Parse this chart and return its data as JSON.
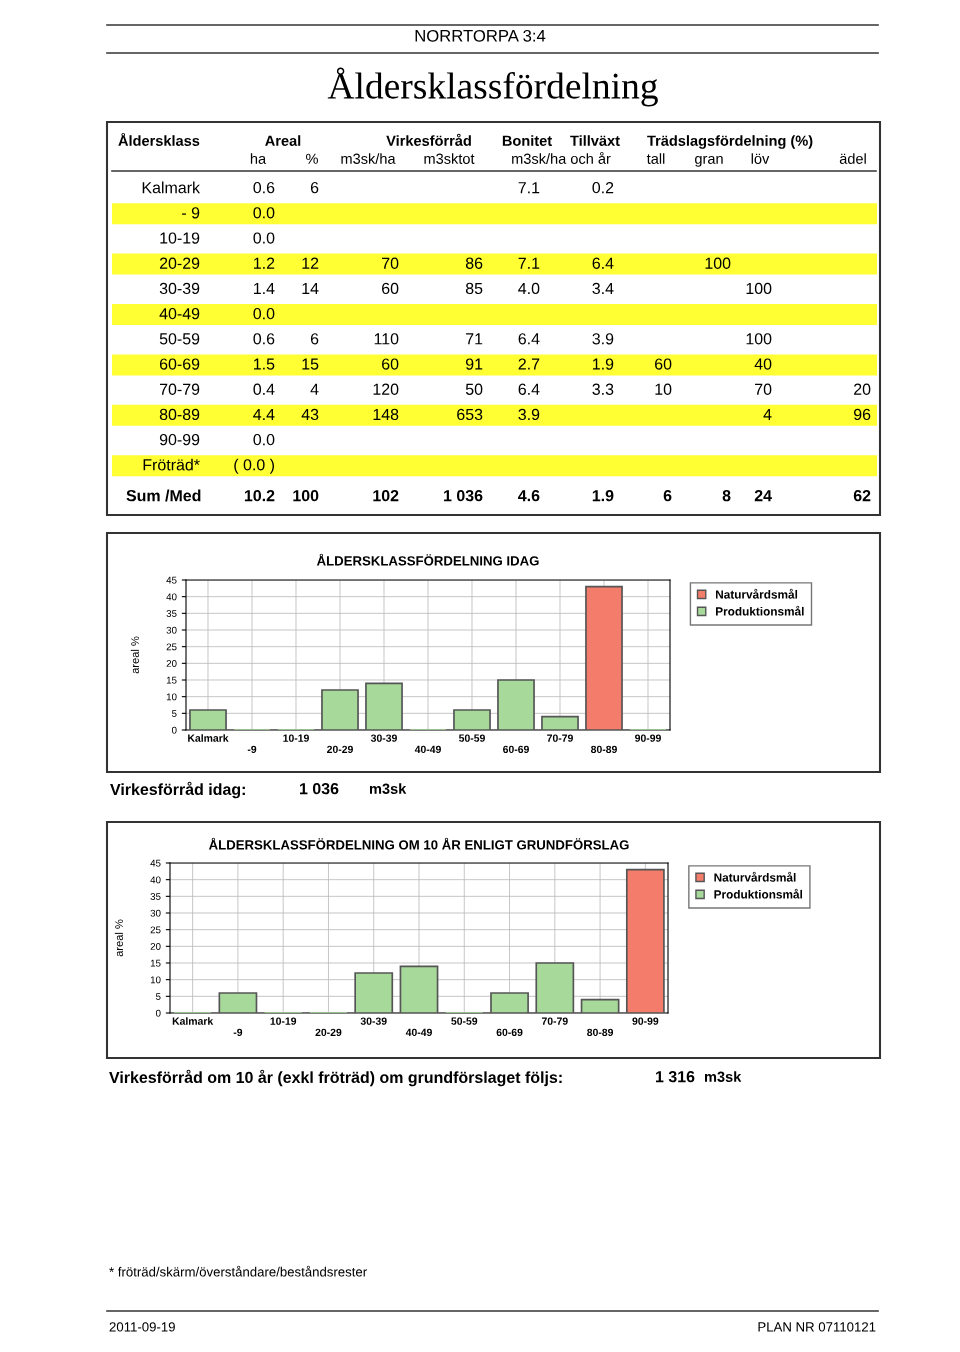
{
  "chart_data": [
    {
      "type": "other",
      "title": "Åldersklassfördelning",
      "subtitle": "NORRTORPA 3:4",
      "annotations": [
        "Åldersklass",
        "Areal",
        "Virkesförråd",
        "Bonitet",
        "Tillväxt",
        "Trädslagsfördelning (%)",
        "* fröträd/skärm/överståndare/beståndsrester",
        "2011-09-19",
        "PLAN NR 07110121"
      ],
      "categories": [
        "ha",
        "%",
        "m3sk/ha",
        "m3sktot",
        "m3sk/ha och år",
        null,
        "tall",
        "gran",
        "löv",
        "ädel"
      ],
      "y_categories": [
        "Kalmark",
        "- 9",
        "10-19",
        "20-29",
        "30-39",
        "40-49",
        "50-59",
        "60-69",
        "70-79",
        "80-89",
        "90-99",
        "Fröträd*",
        "Sum /Med"
      ],
      "colors": [
        null,
        "#ffff33",
        null,
        "#ffff33",
        null,
        "#ffff33",
        null,
        "#ffff33",
        null,
        "#ffff33",
        null,
        "#ffff33",
        null
      ],
      "cell_labels": [
        [
          "0.6",
          "6",
          null,
          null,
          "7.1",
          "0.2",
          null,
          null,
          null,
          null
        ],
        [
          "0.0",
          null,
          null,
          null,
          null,
          null,
          null,
          null,
          null,
          null
        ],
        [
          "0.0",
          null,
          null,
          null,
          null,
          null,
          null,
          null,
          null,
          null
        ],
        [
          "1.2",
          "12",
          "70",
          "86",
          "7.1",
          "6.4",
          null,
          "100",
          null,
          null
        ],
        [
          "1.4",
          "14",
          "60",
          "85",
          "4.0",
          "3.4",
          null,
          null,
          "100",
          null
        ],
        [
          "0.0",
          null,
          null,
          null,
          null,
          null,
          null,
          null,
          null,
          null
        ],
        [
          "0.6",
          "6",
          "110",
          "71",
          "6.4",
          "3.9",
          null,
          null,
          "100",
          null
        ],
        [
          "1.5",
          "15",
          "60",
          "91",
          "2.7",
          "1.9",
          "60",
          null,
          "40",
          null
        ],
        [
          "0.4",
          "4",
          "120",
          "50",
          "6.4",
          "3.3",
          "10",
          null,
          "70",
          "20"
        ],
        [
          "4.4",
          "43",
          "148",
          "653",
          "3.9",
          null,
          null,
          null,
          "4",
          "96"
        ],
        [
          "0.0",
          null,
          null,
          null,
          null,
          null,
          null,
          null,
          null,
          null
        ],
        [
          "( 0.0 )",
          null,
          null,
          null,
          null,
          null,
          null,
          null,
          null,
          null
        ],
        [
          "10.2",
          "100",
          "102",
          "1 036",
          "4.6",
          "1.9",
          "6",
          "8",
          "24",
          "62"
        ]
      ]
    },
    {
      "type": "bar",
      "title": "ÅLDERSKLASSFÖRDELNING IDAG",
      "ylabel": "areal %",
      "categories": [
        "Kalmark",
        "-9",
        "10-19",
        "20-29",
        "30-39",
        "40-49",
        "50-59",
        "60-69",
        "70-79",
        "80-89",
        "90-99"
      ],
      "series": [
        {
          "name": "Naturvårdsmål",
          "color": "#f47c6a",
          "values": [
            null,
            null,
            null,
            null,
            null,
            null,
            null,
            null,
            null,
            43,
            null
          ]
        },
        {
          "name": "Produktionsmål",
          "color": "#a6d99a",
          "values": [
            6,
            0,
            0,
            12,
            14,
            0,
            6,
            15,
            4,
            null,
            0
          ]
        }
      ],
      "ylim": [
        0,
        45
      ],
      "yticks": [
        0,
        5,
        10,
        15,
        20,
        25,
        30,
        35,
        40,
        45
      ],
      "grid": true,
      "legend": "right",
      "annotations": [
        "Virkesförråd idag:",
        "1 036",
        "m3sk"
      ]
    },
    {
      "type": "bar",
      "title": "ÅLDERSKLASSFÖRDELNING OM 10 ÅR ENLIGT GRUNDFÖRSLAG",
      "ylabel": "areal %",
      "categories": [
        "Kalmark",
        "-9",
        "10-19",
        "20-29",
        "30-39",
        "40-49",
        "50-59",
        "60-69",
        "70-79",
        "80-89",
        "90-99"
      ],
      "series": [
        {
          "name": "Naturvårdsmål",
          "color": "#f47c6a",
          "values": [
            null,
            null,
            null,
            null,
            null,
            null,
            null,
            null,
            null,
            null,
            43
          ]
        },
        {
          "name": "Produktionsmål",
          "color": "#a6d99a",
          "values": [
            0,
            6,
            0,
            0,
            12,
            14,
            0,
            6,
            15,
            4,
            null
          ]
        }
      ],
      "ylim": [
        0,
        45
      ],
      "yticks": [
        0,
        5,
        10,
        15,
        20,
        25,
        30,
        35,
        40,
        45
      ],
      "grid": true,
      "legend": "right",
      "annotations": [
        "Virkesförråd om 10 år (exkl fröträd) om grundförslaget följs:",
        "1 316",
        "m3sk"
      ]
    }
  ]
}
